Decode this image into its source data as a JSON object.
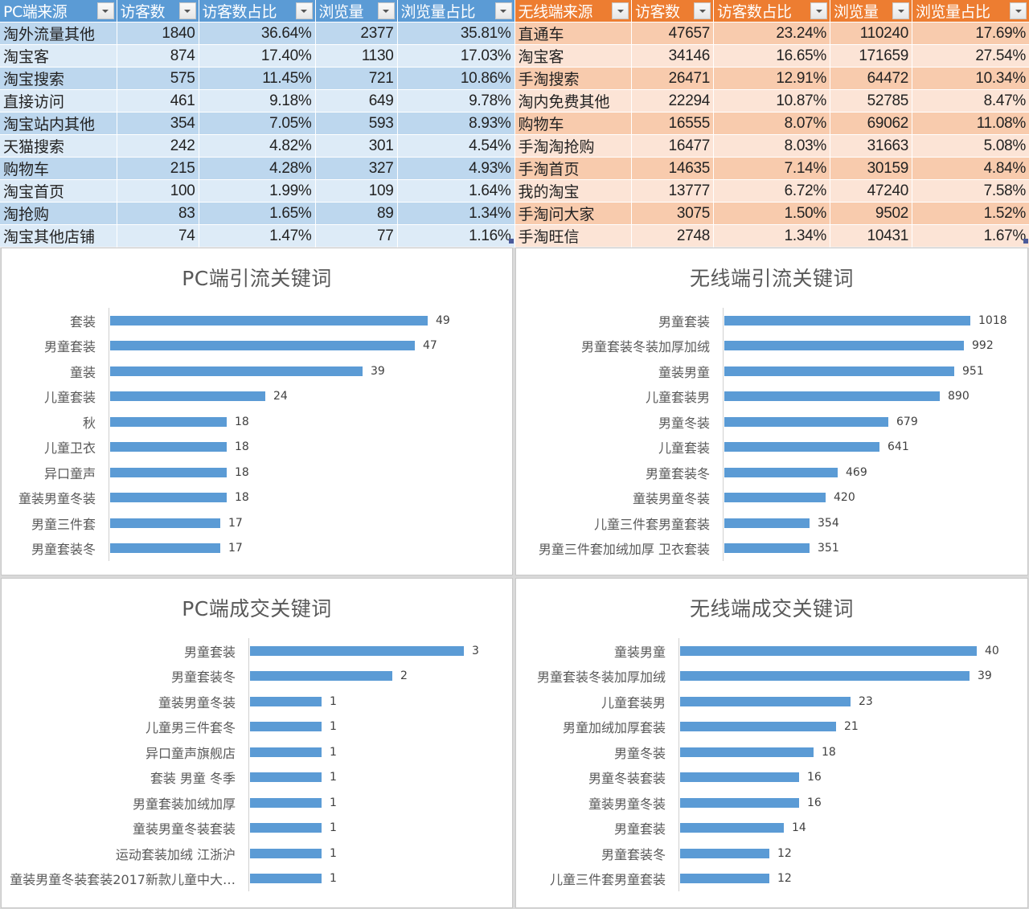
{
  "pc_table": {
    "headers": [
      "PC端来源",
      "访客数",
      "访客数占比",
      "浏览量",
      "浏览量占比"
    ],
    "rows": [
      [
        "淘外流量其他",
        "1840",
        "36.64%",
        "2377",
        "35.81%"
      ],
      [
        "淘宝客",
        "874",
        "17.40%",
        "1130",
        "17.03%"
      ],
      [
        "淘宝搜索",
        "575",
        "11.45%",
        "721",
        "10.86%"
      ],
      [
        "直接访问",
        "461",
        "9.18%",
        "649",
        "9.78%"
      ],
      [
        "淘宝站内其他",
        "354",
        "7.05%",
        "593",
        "8.93%"
      ],
      [
        "天猫搜索",
        "242",
        "4.82%",
        "301",
        "4.54%"
      ],
      [
        "购物车",
        "215",
        "4.28%",
        "327",
        "4.93%"
      ],
      [
        "淘宝首页",
        "100",
        "1.99%",
        "109",
        "1.64%"
      ],
      [
        "淘抢购",
        "83",
        "1.65%",
        "89",
        "1.34%"
      ],
      [
        "淘宝其他店铺",
        "74",
        "1.47%",
        "77",
        "1.16%"
      ]
    ],
    "header_color": "#5b9bd5",
    "band_colors": [
      "#bdd7ee",
      "#ddebf7"
    ]
  },
  "mobile_table": {
    "headers": [
      "无线端来源",
      "访客数",
      "访客数占比",
      "浏览量",
      "浏览量占比"
    ],
    "rows": [
      [
        "直通车",
        "47657",
        "23.24%",
        "110240",
        "17.69%"
      ],
      [
        "淘宝客",
        "34146",
        "16.65%",
        "171659",
        "27.54%"
      ],
      [
        "手淘搜索",
        "26471",
        "12.91%",
        "64472",
        "10.34%"
      ],
      [
        "淘内免费其他",
        "22294",
        "10.87%",
        "52785",
        "8.47%"
      ],
      [
        "购物车",
        "16555",
        "8.07%",
        "69062",
        "11.08%"
      ],
      [
        "手淘淘抢购",
        "16477",
        "8.03%",
        "31663",
        "5.08%"
      ],
      [
        "手淘首页",
        "14635",
        "7.14%",
        "30159",
        "4.84%"
      ],
      [
        "我的淘宝",
        "13777",
        "6.72%",
        "47240",
        "7.58%"
      ],
      [
        "手淘问大家",
        "3075",
        "1.50%",
        "9502",
        "1.52%"
      ],
      [
        "手淘旺信",
        "2748",
        "1.34%",
        "10431",
        "1.67%"
      ]
    ],
    "header_color": "#ed7d31",
    "band_colors": [
      "#f8cbad",
      "#fce4d6"
    ]
  },
  "icons": {
    "filter_dropdown": "chevron-down-icon"
  },
  "chart_data": [
    {
      "type": "bar",
      "orientation": "horizontal",
      "title": "PC端引流关键词",
      "categories": [
        "套装",
        "男童套装",
        "童装",
        "儿童套装",
        "秋",
        "儿童卫衣",
        "异口童声",
        "童装男童冬装",
        "男童三件套",
        "男童套装冬"
      ],
      "values": [
        49,
        47,
        39,
        24,
        18,
        18,
        18,
        18,
        17,
        17
      ],
      "xlabel": "",
      "ylabel": "",
      "xlim": [
        0,
        49
      ],
      "grid": false,
      "legend": null,
      "bar_color": "#5b9bd5",
      "data_labels": true
    },
    {
      "type": "bar",
      "orientation": "horizontal",
      "title": "无线端引流关键词",
      "categories": [
        "男童套装",
        "男童套装冬装加厚加绒",
        "童装男童",
        "儿童套装男",
        "男童冬装",
        "儿童套装",
        "男童套装冬",
        "童装男童冬装",
        "儿童三件套男童套装",
        "男童三件套加绒加厚 卫衣套装"
      ],
      "values": [
        1018,
        992,
        951,
        890,
        679,
        641,
        469,
        420,
        354,
        351
      ],
      "xlabel": "",
      "ylabel": "",
      "xlim": [
        0,
        1018
      ],
      "grid": false,
      "legend": null,
      "bar_color": "#5b9bd5",
      "data_labels": true
    },
    {
      "type": "bar",
      "orientation": "horizontal",
      "title": "PC端成交关键词",
      "categories": [
        "男童套装",
        "男童套装冬",
        "童装男童冬装",
        "儿童男三件套冬",
        "异口童声旗舰店",
        "套装 男童 冬季",
        "男童套装加绒加厚",
        "童装男童冬装套装",
        "运动套装加绒 江浙沪",
        "童装男童冬装套装2017新款儿童中大…"
      ],
      "values": [
        3,
        2,
        1,
        1,
        1,
        1,
        1,
        1,
        1,
        1
      ],
      "xlabel": "",
      "ylabel": "",
      "xlim": [
        0,
        3
      ],
      "grid": false,
      "legend": null,
      "bar_color": "#5b9bd5",
      "data_labels": true
    },
    {
      "type": "bar",
      "orientation": "horizontal",
      "title": "无线端成交关键词",
      "categories": [
        "童装男童",
        "男童套装冬装加厚加绒",
        "儿童套装男",
        "男童加绒加厚套装",
        "男童冬装",
        "男童冬装套装",
        "童装男童冬装",
        "男童套装",
        "男童套装冬",
        "儿童三件套男童套装"
      ],
      "values": [
        40,
        39,
        23,
        21,
        18,
        16,
        16,
        14,
        12,
        12
      ],
      "xlabel": "",
      "ylabel": "",
      "xlim": [
        0,
        40
      ],
      "grid": false,
      "legend": null,
      "bar_color": "#5b9bd5",
      "data_labels": true
    }
  ]
}
